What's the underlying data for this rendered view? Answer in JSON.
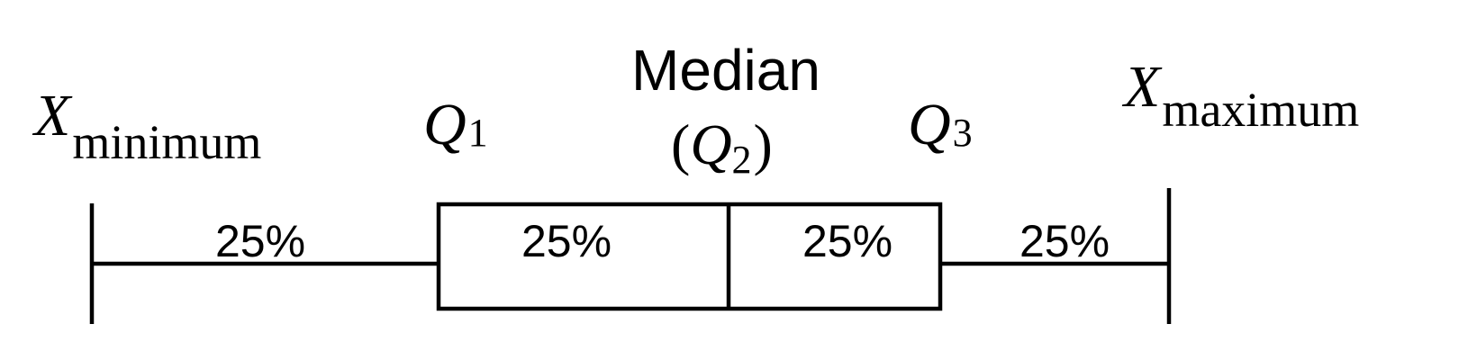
{
  "diagram": {
    "min_label": {
      "symbol": "X",
      "subscript": "minimum"
    },
    "q1_label": {
      "symbol": "Q",
      "subscript": "1"
    },
    "median_label": {
      "title": "Median",
      "open_paren": "(",
      "symbol": "Q",
      "subscript": "2",
      "close_paren": ")"
    },
    "q3_label": {
      "symbol": "Q",
      "subscript": "3"
    },
    "max_label": {
      "symbol": "X",
      "subscript": "maximum"
    },
    "segments": [
      {
        "name": "lower-whisker",
        "label": "25%"
      },
      {
        "name": "lower-box",
        "label": "25%"
      },
      {
        "name": "upper-box",
        "label": "25%"
      },
      {
        "name": "upper-whisker",
        "label": "25%"
      }
    ],
    "line_color": "#000000",
    "background_color": "#ffffff"
  }
}
